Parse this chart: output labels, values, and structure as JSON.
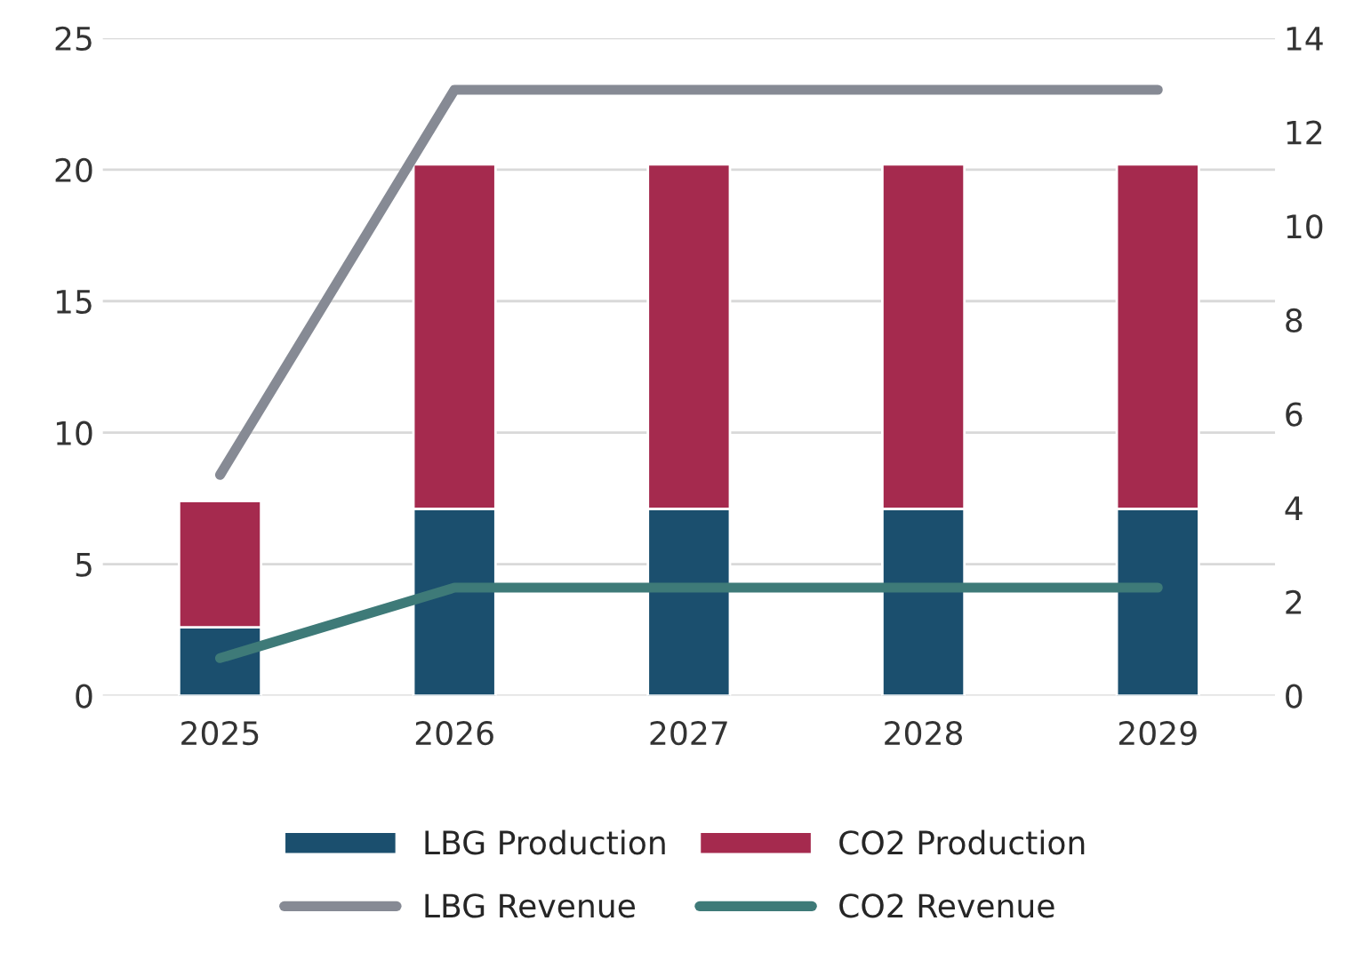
{
  "chart_data": {
    "type": "bar",
    "stacked": true,
    "categories": [
      "2025",
      "2026",
      "2027",
      "2028",
      "2029"
    ],
    "series": [
      {
        "name": "LBG Production",
        "color": "#1b4f6e",
        "values": [
          2.6,
          7.1,
          7.1,
          7.1,
          7.1
        ]
      },
      {
        "name": "CO2 Production",
        "color": "#a52a4e",
        "values": [
          4.8,
          13.1,
          13.1,
          13.1,
          13.1
        ]
      },
      {
        "name": "LBG Revenue",
        "type": "line",
        "axis": "y2",
        "color": "#868a94",
        "values": [
          4.7,
          12.9,
          12.9,
          12.9,
          12.9
        ]
      },
      {
        "name": "CO2 Revenue",
        "type": "line",
        "axis": "y2",
        "color": "#3e7a78",
        "values": [
          0.8,
          2.3,
          2.3,
          2.3,
          2.3
        ]
      }
    ],
    "ylim": [
      0,
      25
    ],
    "yticks": [
      0,
      5,
      10,
      15,
      20,
      25
    ],
    "y2lim": [
      0,
      14
    ],
    "y2ticks": [
      0,
      2,
      4,
      6,
      8,
      10,
      12,
      14
    ],
    "grid": "y",
    "legend": "bottom",
    "marker": "none",
    "line_style": "solid"
  }
}
